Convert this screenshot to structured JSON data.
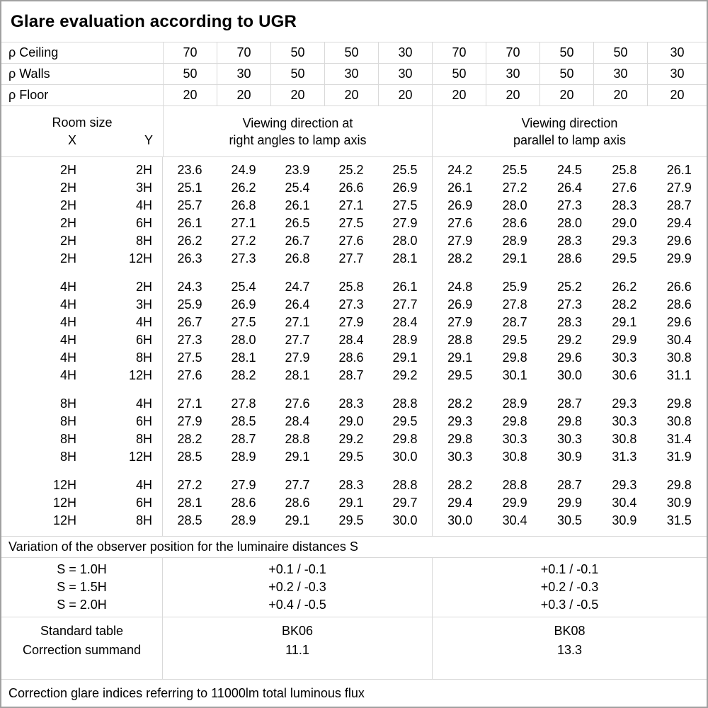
{
  "title": "Glare evaluation according to UGR",
  "reflectance_rows": [
    {
      "label": "ρ Ceiling",
      "values": [
        "70",
        "70",
        "50",
        "50",
        "30",
        "70",
        "70",
        "50",
        "50",
        "30"
      ]
    },
    {
      "label": "ρ Walls",
      "values": [
        "50",
        "30",
        "50",
        "30",
        "30",
        "50",
        "30",
        "50",
        "30",
        "30"
      ]
    },
    {
      "label": "ρ Floor",
      "values": [
        "20",
        "20",
        "20",
        "20",
        "20",
        "20",
        "20",
        "20",
        "20",
        "20"
      ]
    }
  ],
  "header": {
    "room_size_label": "Room size",
    "x_label": "X",
    "y_label": "Y",
    "right_angles_heading_1": "Viewing direction at",
    "right_angles_heading_2": "right angles to lamp axis",
    "parallel_heading_1": "Viewing direction",
    "parallel_heading_2": "parallel to lamp axis"
  },
  "ugr_table": {
    "groups": [
      {
        "rows": [
          {
            "x": "2H",
            "y": "2H",
            "right_angles": [
              "23.6",
              "24.9",
              "23.9",
              "25.2",
              "25.5"
            ],
            "parallel": [
              "24.2",
              "25.5",
              "24.5",
              "25.8",
              "26.1"
            ]
          },
          {
            "x": "2H",
            "y": "3H",
            "right_angles": [
              "25.1",
              "26.2",
              "25.4",
              "26.6",
              "26.9"
            ],
            "parallel": [
              "26.1",
              "27.2",
              "26.4",
              "27.6",
              "27.9"
            ]
          },
          {
            "x": "2H",
            "y": "4H",
            "right_angles": [
              "25.7",
              "26.8",
              "26.1",
              "27.1",
              "27.5"
            ],
            "parallel": [
              "26.9",
              "28.0",
              "27.3",
              "28.3",
              "28.7"
            ]
          },
          {
            "x": "2H",
            "y": "6H",
            "right_angles": [
              "26.1",
              "27.1",
              "26.5",
              "27.5",
              "27.9"
            ],
            "parallel": [
              "27.6",
              "28.6",
              "28.0",
              "29.0",
              "29.4"
            ]
          },
          {
            "x": "2H",
            "y": "8H",
            "right_angles": [
              "26.2",
              "27.2",
              "26.7",
              "27.6",
              "28.0"
            ],
            "parallel": [
              "27.9",
              "28.9",
              "28.3",
              "29.3",
              "29.6"
            ]
          },
          {
            "x": "2H",
            "y": "12H",
            "right_angles": [
              "26.3",
              "27.3",
              "26.8",
              "27.7",
              "28.1"
            ],
            "parallel": [
              "28.2",
              "29.1",
              "28.6",
              "29.5",
              "29.9"
            ]
          }
        ]
      },
      {
        "rows": [
          {
            "x": "4H",
            "y": "2H",
            "right_angles": [
              "24.3",
              "25.4",
              "24.7",
              "25.8",
              "26.1"
            ],
            "parallel": [
              "24.8",
              "25.9",
              "25.2",
              "26.2",
              "26.6"
            ]
          },
          {
            "x": "4H",
            "y": "3H",
            "right_angles": [
              "25.9",
              "26.9",
              "26.4",
              "27.3",
              "27.7"
            ],
            "parallel": [
              "26.9",
              "27.8",
              "27.3",
              "28.2",
              "28.6"
            ]
          },
          {
            "x": "4H",
            "y": "4H",
            "right_angles": [
              "26.7",
              "27.5",
              "27.1",
              "27.9",
              "28.4"
            ],
            "parallel": [
              "27.9",
              "28.7",
              "28.3",
              "29.1",
              "29.6"
            ]
          },
          {
            "x": "4H",
            "y": "6H",
            "right_angles": [
              "27.3",
              "28.0",
              "27.7",
              "28.4",
              "28.9"
            ],
            "parallel": [
              "28.8",
              "29.5",
              "29.2",
              "29.9",
              "30.4"
            ]
          },
          {
            "x": "4H",
            "y": "8H",
            "right_angles": [
              "27.5",
              "28.1",
              "27.9",
              "28.6",
              "29.1"
            ],
            "parallel": [
              "29.1",
              "29.8",
              "29.6",
              "30.3",
              "30.8"
            ]
          },
          {
            "x": "4H",
            "y": "12H",
            "right_angles": [
              "27.6",
              "28.2",
              "28.1",
              "28.7",
              "29.2"
            ],
            "parallel": [
              "29.5",
              "30.1",
              "30.0",
              "30.6",
              "31.1"
            ]
          }
        ]
      },
      {
        "rows": [
          {
            "x": "8H",
            "y": "4H",
            "right_angles": [
              "27.1",
              "27.8",
              "27.6",
              "28.3",
              "28.8"
            ],
            "parallel": [
              "28.2",
              "28.9",
              "28.7",
              "29.3",
              "29.8"
            ]
          },
          {
            "x": "8H",
            "y": "6H",
            "right_angles": [
              "27.9",
              "28.5",
              "28.4",
              "29.0",
              "29.5"
            ],
            "parallel": [
              "29.3",
              "29.8",
              "29.8",
              "30.3",
              "30.8"
            ]
          },
          {
            "x": "8H",
            "y": "8H",
            "right_angles": [
              "28.2",
              "28.7",
              "28.8",
              "29.2",
              "29.8"
            ],
            "parallel": [
              "29.8",
              "30.3",
              "30.3",
              "30.8",
              "31.4"
            ]
          },
          {
            "x": "8H",
            "y": "12H",
            "right_angles": [
              "28.5",
              "28.9",
              "29.1",
              "29.5",
              "30.0"
            ],
            "parallel": [
              "30.3",
              "30.8",
              "30.9",
              "31.3",
              "31.9"
            ]
          }
        ]
      },
      {
        "rows": [
          {
            "x": "12H",
            "y": "4H",
            "right_angles": [
              "27.2",
              "27.9",
              "27.7",
              "28.3",
              "28.8"
            ],
            "parallel": [
              "28.2",
              "28.8",
              "28.7",
              "29.3",
              "29.8"
            ]
          },
          {
            "x": "12H",
            "y": "6H",
            "right_angles": [
              "28.1",
              "28.6",
              "28.6",
              "29.1",
              "29.7"
            ],
            "parallel": [
              "29.4",
              "29.9",
              "29.9",
              "30.4",
              "30.9"
            ]
          },
          {
            "x": "12H",
            "y": "8H",
            "right_angles": [
              "28.5",
              "28.9",
              "29.1",
              "29.5",
              "30.0"
            ],
            "parallel": [
              "30.0",
              "30.4",
              "30.5",
              "30.9",
              "31.5"
            ]
          }
        ]
      }
    ]
  },
  "variation_note": "Variation of the observer position for the luminaire distances S",
  "observer_variation": {
    "s_labels": [
      "S = 1.0H",
      "S = 1.5H",
      "S = 2.0H"
    ],
    "right_angles": [
      "+0.1 / -0.1",
      "+0.2 / -0.3",
      "+0.4 / -0.5"
    ],
    "parallel": [
      "+0.1 / -0.1",
      "+0.2 / -0.3",
      "+0.3 / -0.5"
    ]
  },
  "standard": {
    "labels": [
      "Standard table",
      "Correction summand"
    ],
    "right_angles": [
      "BK06",
      "11.1"
    ],
    "parallel": [
      "BK08",
      "13.3"
    ]
  },
  "footer_note": "Correction glare indices referring to 11000lm total luminous flux",
  "colors": {
    "border_outer": "#a0a0a0",
    "grid_line": "#d9d9d9",
    "text": "#000000",
    "background": "#ffffff"
  }
}
